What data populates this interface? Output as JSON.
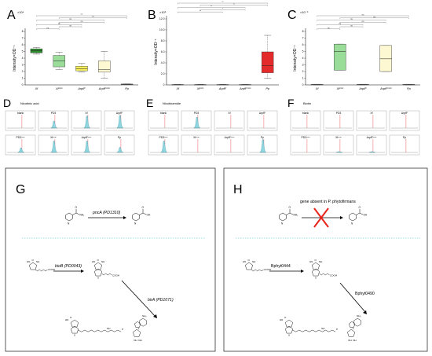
{
  "panels": {
    "A": {
      "letter": "A",
      "exponent": "×10⁴",
      "ylabel": "Intensity×OD⁻¹",
      "yticks": [
        "0",
        "1",
        "2",
        "3",
        "4",
        "5",
        "6",
        "7",
        "8"
      ],
      "sig": [
        "***",
        "***",
        "ns",
        "ns",
        "ns",
        "ns",
        "ns"
      ]
    },
    "B": {
      "letter": "B",
      "exponent": "×10⁶",
      "ylabel": "Intensity×OD⁻¹",
      "yticks": [
        "0",
        "2.0",
        "4.0",
        "6.0",
        "8.0",
        "10.0",
        "12.0"
      ],
      "sig": [
        "**",
        "**",
        "**",
        "*",
        "**"
      ]
    },
    "C": {
      "letter": "C",
      "exponent": "×10⁻⁶",
      "ylabel": "Intensity×OD⁻¹",
      "yticks": [
        "0",
        "1",
        "2",
        "3",
        "4",
        "5",
        "6",
        "7",
        "8"
      ],
      "sig": [
        "ns",
        "ns",
        "ns",
        "ns",
        "ns",
        "ns",
        "ns"
      ]
    },
    "D": {
      "letter": "D",
      "title": "Nicotinic acid"
    },
    "E": {
      "letter": "E",
      "title": "Nicotinamide"
    },
    "F": {
      "letter": "F",
      "title": "Biotin"
    },
    "G": {
      "letter": "G"
    },
    "H": {
      "letter": "H"
    }
  },
  "strains": [
    "Xf",
    "Xfᶜᵒᵐ",
    "ΔrpfF",
    "ΔrpfFᶜᵒᵐ",
    "Pp"
  ],
  "trace_labels": {
    "row1": [
      "blank",
      "PD3",
      "Xf",
      "ΔrpfF"
    ],
    "row2": [
      "PD3ᶜᵒᵐ",
      "Xfᶜᵒᵐ",
      "ΔrpfFᶜᵒᵐ",
      "Pp"
    ]
  },
  "G": {
    "gene1": "pncA (PD1310)",
    "gene2": "bioB (PD0043)",
    "gene3": "birA (PD1071)"
  },
  "H": {
    "note": "gene absent in P. phytofirmans",
    "gene2": "Bphyt0444",
    "gene3": "Bphyt0490"
  },
  "chem": {
    "nh2": "NH₂",
    "oh": "OH",
    "nh": "NH",
    "cooh": "COOH",
    "o": "O",
    "s": "S",
    "h": "H",
    "n": "N",
    "p": "P",
    "hn": "HN"
  },
  "colors": {
    "green_dark": "#2e8b2e",
    "green_light": "#99dd99",
    "yellow": "#f5f05a",
    "ivory": "#fdf8d2",
    "red": "#e32b2b",
    "trace_fill": "#8fd6e0",
    "red_x": "#e8241b"
  },
  "chart_data": [
    {
      "panel": "A",
      "type": "box",
      "categories": [
        "Xf",
        "Xfᶜᵒᵐ",
        "ΔrpfF",
        "ΔrpfFᶜᵒᵐ",
        "Pp"
      ],
      "boxes": [
        {
          "min": 4.6,
          "q1": 4.8,
          "median": 5.1,
          "q3": 5.4,
          "max": 5.6
        },
        {
          "min": 2.3,
          "q1": 2.7,
          "median": 3.6,
          "q3": 4.4,
          "max": 4.9
        },
        {
          "min": 1.9,
          "q1": 2.1,
          "median": 2.4,
          "q3": 2.8,
          "max": 3.2
        },
        {
          "min": 1.0,
          "q1": 1.9,
          "median": 2.3,
          "q3": 3.6,
          "max": 5.0
        },
        {
          "min": 0.05,
          "q1": 0.07,
          "median": 0.1,
          "q3": 0.13,
          "max": 0.15
        }
      ],
      "ylim": [
        0,
        8
      ]
    },
    {
      "panel": "B",
      "type": "box",
      "categories": [
        "Xf",
        "Xfᶜᵒᵐ",
        "ΔrpfF",
        "ΔrpfFᶜᵒᵐ",
        "Pp"
      ],
      "boxes": [
        {
          "min": 0.0,
          "q1": 0.02,
          "median": 0.04,
          "q3": 0.06,
          "max": 0.08
        },
        {
          "min": 0.0,
          "q1": 0.02,
          "median": 0.04,
          "q3": 0.06,
          "max": 0.08
        },
        {
          "min": 0.0,
          "q1": 0.02,
          "median": 0.04,
          "q3": 0.06,
          "max": 0.08
        },
        {
          "min": 0.0,
          "q1": 0.02,
          "median": 0.04,
          "q3": 0.06,
          "max": 0.08
        },
        {
          "min": 1.2,
          "q1": 2.2,
          "median": 3.5,
          "q3": 6.0,
          "max": 9.0
        }
      ],
      "ylim": [
        0,
        12
      ]
    },
    {
      "panel": "C",
      "type": "box",
      "categories": [
        "Xf",
        "Xfᶜᵒᵐ",
        "ΔrpfF",
        "ΔrpfFᶜᵒᵐ",
        "Pp"
      ],
      "boxes": [
        {
          "min": 0.0,
          "q1": 0.03,
          "median": 0.05,
          "q3": 0.07,
          "max": 0.1
        },
        {
          "min": 2.2,
          "q1": 2.2,
          "median": 5.0,
          "q3": 6.1,
          "max": 6.1
        },
        {
          "min": 0.0,
          "q1": 0.03,
          "median": 0.05,
          "q3": 0.07,
          "max": 0.1
        },
        {
          "min": 2.0,
          "q1": 2.0,
          "median": 3.9,
          "q3": 5.9,
          "max": 5.9
        },
        {
          "min": 0.0,
          "q1": 0.03,
          "median": 0.05,
          "q3": 0.07,
          "max": 0.1
        }
      ],
      "ylim": [
        0,
        8
      ]
    }
  ]
}
